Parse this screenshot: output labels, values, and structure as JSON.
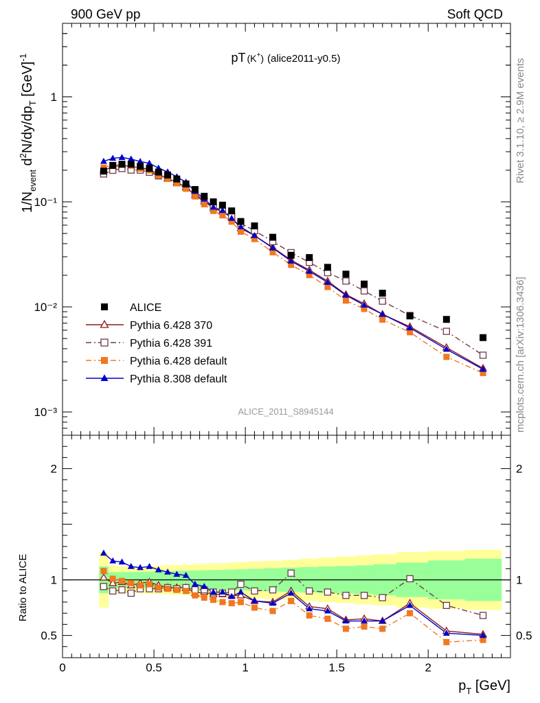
{
  "header": {
    "left": "900 GeV pp",
    "right": "Soft QCD"
  },
  "side_labels": {
    "rivet": "Rivet 3.1.10, ≥ 2.9M events",
    "mcplots": "mcplots.cern.ch [arXiv:1306.3436]"
  },
  "chart_data": {
    "type": "scatter",
    "title": "pT(K⁺) (alice2011-y0.5)",
    "title_main": "pT",
    "title_paren": "(K",
    "title_sup": "+",
    "title_paren_close": ")",
    "title_rest": "(alice2011-y0.5)",
    "analysis_id": "ALICE_2011_S8945144",
    "xlabel": "p_T [GeV]",
    "xlabel_main": "p",
    "xlabel_sub": "T",
    "xlabel_rest": " [GeV]",
    "ylabel": "1/N_event d²N/dy/dp_T [GeV]⁻¹",
    "ratio_ylabel": "Ratio to ALICE",
    "xlim": [
      0,
      2.45
    ],
    "ylim": [
      0.0006,
      5
    ],
    "yscale": "log",
    "ratio_ylim": [
      0.3,
      2.3
    ],
    "grid": false,
    "legend_position": "bottom-left",
    "x_ticks": [
      "0",
      "0.5",
      "1",
      "1.5",
      "2"
    ],
    "y_ticks": [
      "1",
      "10⁻¹",
      "10⁻²",
      "10⁻³"
    ],
    "ratio_ticks": [
      "0.5",
      "1",
      "2"
    ],
    "x": [
      0.225,
      0.275,
      0.325,
      0.375,
      0.425,
      0.475,
      0.525,
      0.575,
      0.625,
      0.675,
      0.725,
      0.775,
      0.825,
      0.875,
      0.925,
      0.975,
      1.05,
      1.15,
      1.25,
      1.35,
      1.45,
      1.55,
      1.65,
      1.75,
      1.9,
      2.1,
      2.3
    ],
    "data": {
      "name": "ALICE",
      "values": [
        0.196,
        0.222,
        0.228,
        0.228,
        0.218,
        0.208,
        0.192,
        0.18,
        0.165,
        0.148,
        0.131,
        0.113,
        0.1,
        0.093,
        0.082,
        0.065,
        0.059,
        0.046,
        0.031,
        0.0295,
        0.0238,
        0.0205,
        0.0165,
        0.0135,
        0.0082,
        0.0076,
        0.0051
      ],
      "band_inner": [
        0.12,
        0.07,
        0.07,
        0.07,
        0.072,
        0.074,
        0.076,
        0.078,
        0.08,
        0.082,
        0.084,
        0.086,
        0.088,
        0.09,
        0.092,
        0.095,
        0.1,
        0.105,
        0.11,
        0.115,
        0.12,
        0.125,
        0.13,
        0.14,
        0.155,
        0.175,
        0.19
      ],
      "band_outer": [
        0.25,
        0.13,
        0.12,
        0.12,
        0.12,
        0.124,
        0.128,
        0.13,
        0.133,
        0.136,
        0.14,
        0.143,
        0.147,
        0.15,
        0.155,
        0.16,
        0.165,
        0.17,
        0.18,
        0.19,
        0.2,
        0.21,
        0.22,
        0.23,
        0.25,
        0.26,
        0.27
      ]
    },
    "series": [
      {
        "name": "Pythia 6.428 370",
        "color": "#8b1a1a",
        "marker": "triangle-open",
        "line": "solid",
        "ratio": [
          1.02,
          0.97,
          0.98,
          0.95,
          0.97,
          0.98,
          0.95,
          0.93,
          0.93,
          0.93,
          0.88,
          0.89,
          0.87,
          0.87,
          0.86,
          0.86,
          0.81,
          0.8,
          0.9,
          0.76,
          0.74,
          0.64,
          0.65,
          0.63,
          0.79,
          0.54,
          0.51
        ]
      },
      {
        "name": "Pythia 6.428 391",
        "color": "#6b3a4a",
        "marker": "square-open",
        "line": "dashdot",
        "ratio": [
          0.94,
          0.9,
          0.91,
          0.88,
          0.92,
          0.92,
          0.92,
          0.93,
          0.92,
          0.93,
          0.91,
          0.91,
          0.89,
          0.88,
          0.89,
          0.96,
          0.9,
          0.91,
          1.06,
          0.9,
          0.89,
          0.86,
          0.86,
          0.84,
          1.01,
          0.77,
          0.68
        ]
      },
      {
        "name": "Pythia 6.428 default",
        "color": "#f07820",
        "marker": "square-filled",
        "line": "dashdot",
        "ratio": [
          1.08,
          1.01,
          0.99,
          0.97,
          0.95,
          0.96,
          0.93,
          0.92,
          0.91,
          0.9,
          0.86,
          0.84,
          0.82,
          0.8,
          0.79,
          0.8,
          0.75,
          0.72,
          0.81,
          0.68,
          0.65,
          0.56,
          0.58,
          0.56,
          0.7,
          0.44,
          0.46
        ]
      },
      {
        "name": "Pythia 8.308 default",
        "color": "#0000cc",
        "marker": "triangle-filled",
        "line": "solid",
        "ratio": [
          1.24,
          1.17,
          1.16,
          1.12,
          1.11,
          1.12,
          1.09,
          1.07,
          1.05,
          1.04,
          0.96,
          0.94,
          0.89,
          0.89,
          0.85,
          0.89,
          0.81,
          0.79,
          0.88,
          0.74,
          0.72,
          0.63,
          0.63,
          0.63,
          0.77,
          0.52,
          0.5
        ]
      }
    ]
  }
}
